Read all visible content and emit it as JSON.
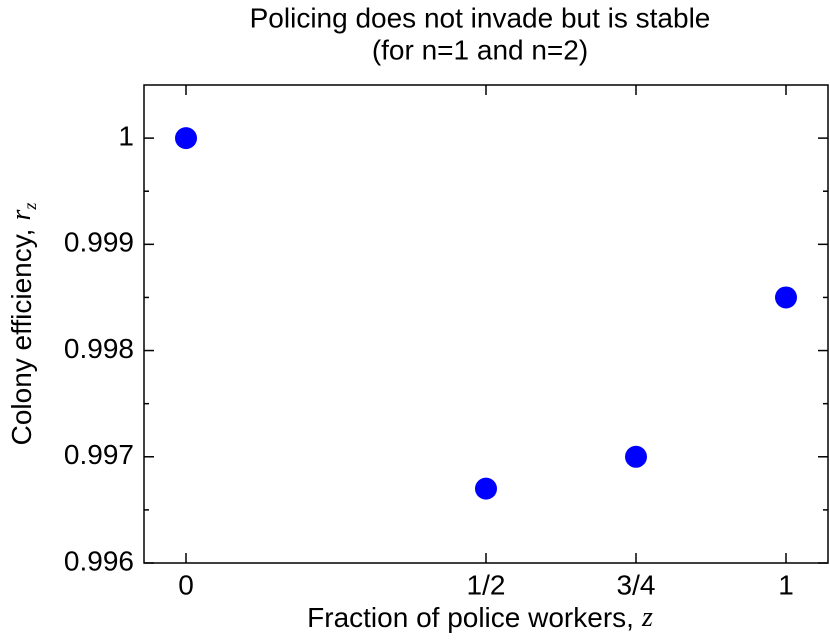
{
  "chart_data": {
    "type": "scatter",
    "title": "Policing does not invade but is stable",
    "subtitle": "(for n=1 and n=2)",
    "xlabel": "Fraction of police workers,",
    "xlabel_var": "z",
    "ylabel": "Colony efficiency,",
    "ylabel_var": "r",
    "ylabel_sub": "z",
    "x": [
      0,
      0.5,
      0.75,
      1
    ],
    "values": [
      1,
      0.9967,
      0.997,
      0.9985
    ],
    "color": "#0000ff",
    "xlim": [
      -0.07,
      1.07
    ],
    "xticks": [
      0,
      {
        "value": 0.5,
        "label": "1/2"
      },
      {
        "value": 0.75,
        "label": "3/4"
      },
      1
    ],
    "ylim": [
      0.996,
      1.0005
    ],
    "yticks": [
      0.996,
      0.997,
      0.998,
      0.999,
      1
    ]
  }
}
